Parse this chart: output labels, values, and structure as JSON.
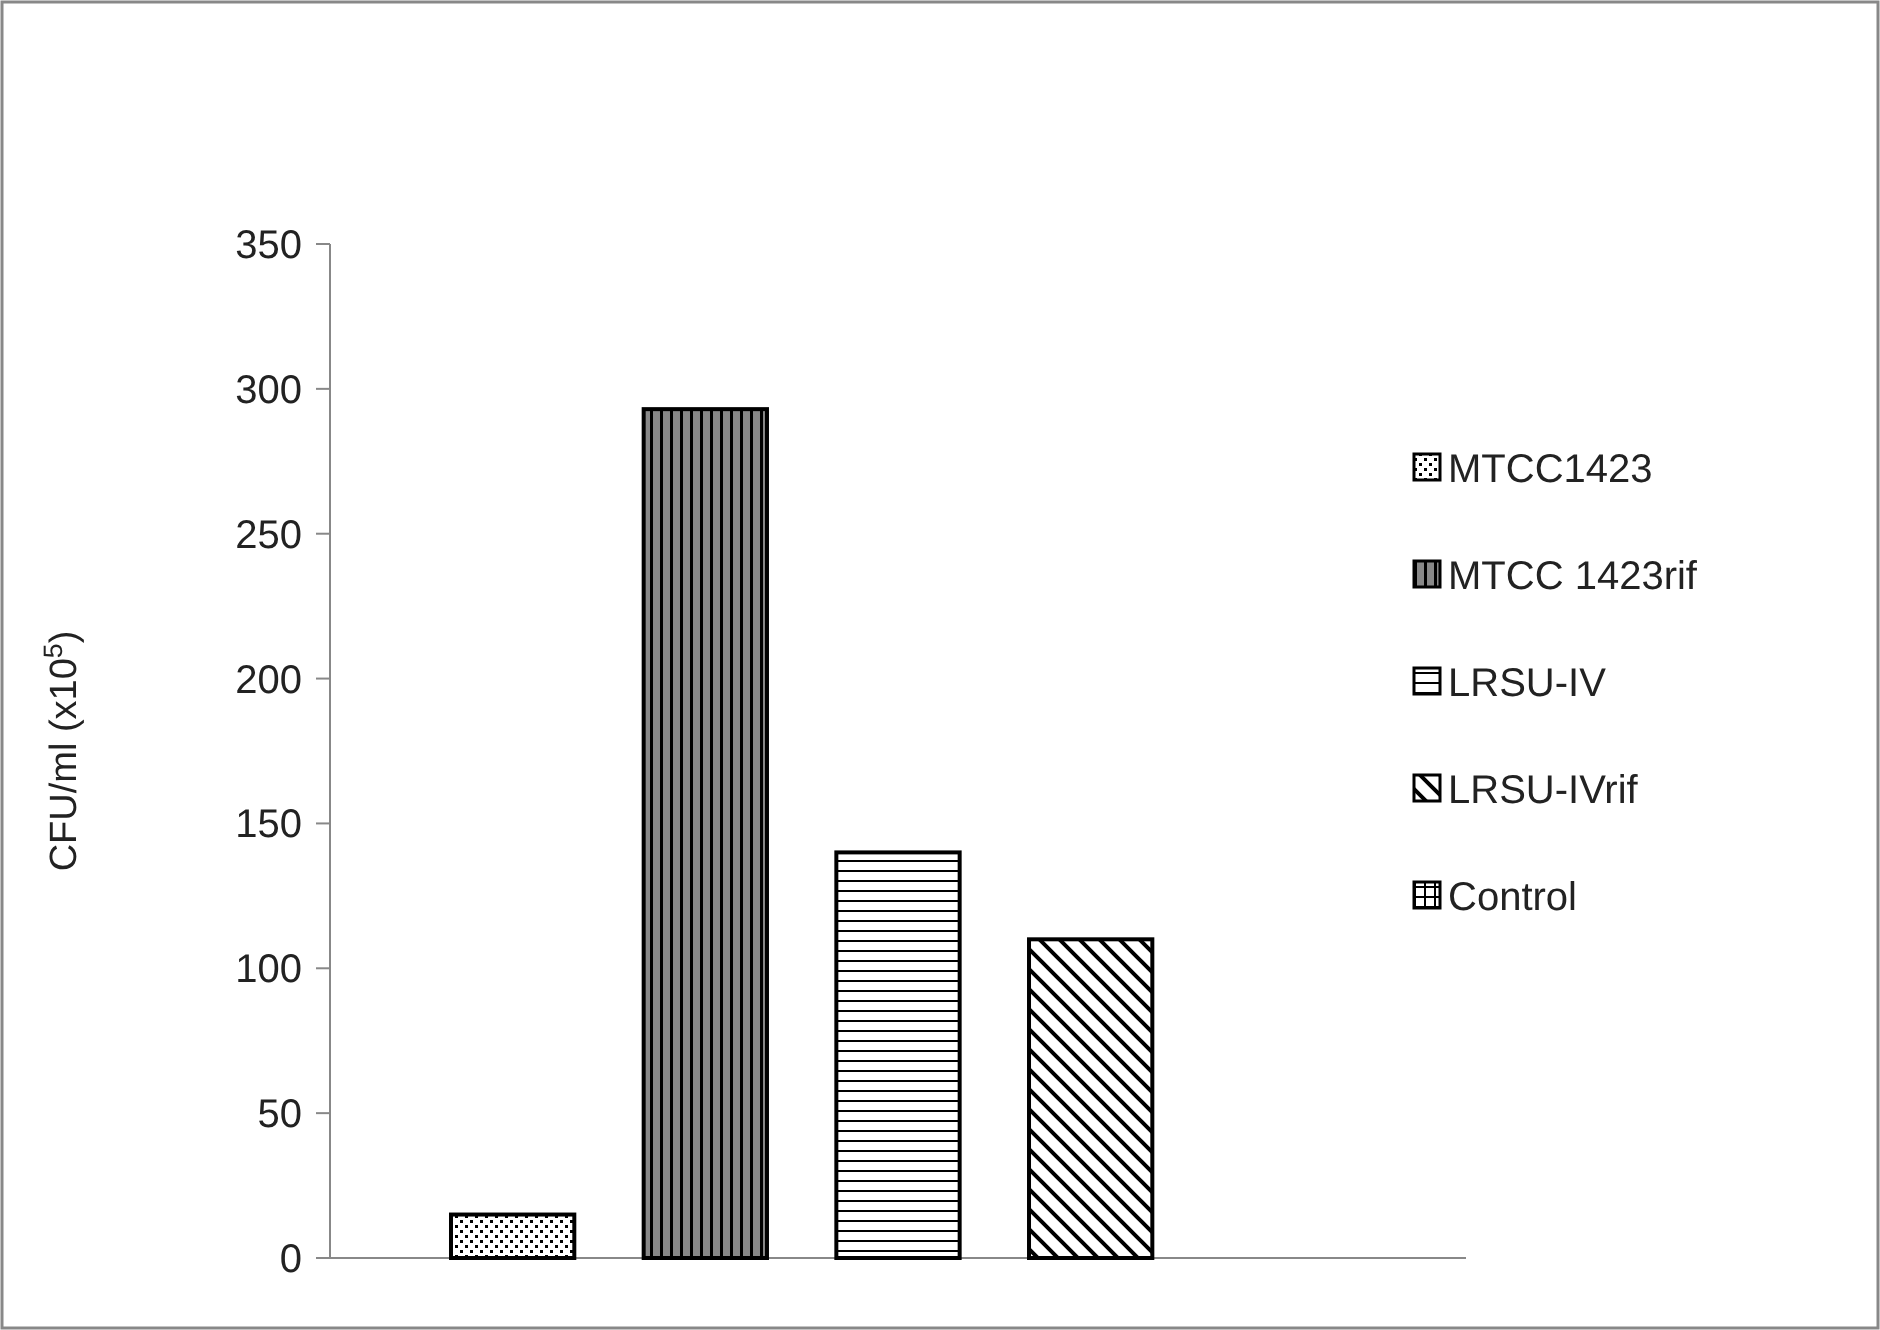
{
  "chart_data": {
    "type": "bar",
    "categories": [
      null
    ],
    "ylabel": "CFU/ml (x10$^{5}$)",
    "series": [
      {
        "name": "MTCC1423",
        "color": "#000000",
        "values": [
          15
        ]
      },
      {
        "name": "MTCC 1423rif",
        "color": "#000000",
        "values": [
          293
        ]
      },
      {
        "name": "LRSU-IV",
        "color": "#000000",
        "values": [
          140
        ]
      },
      {
        "name": "LRSU-IVrif",
        "color": "#000000",
        "values": [
          110
        ]
      },
      {
        "name": "Control",
        "color": "#000000",
        "values": [
          0
        ]
      }
    ],
    "ylim": [
      0,
      350
    ],
    "yticks": [
      0,
      50,
      100,
      150,
      200,
      250,
      300,
      350
    ],
    "grid": false,
    "legend": "right"
  }
}
